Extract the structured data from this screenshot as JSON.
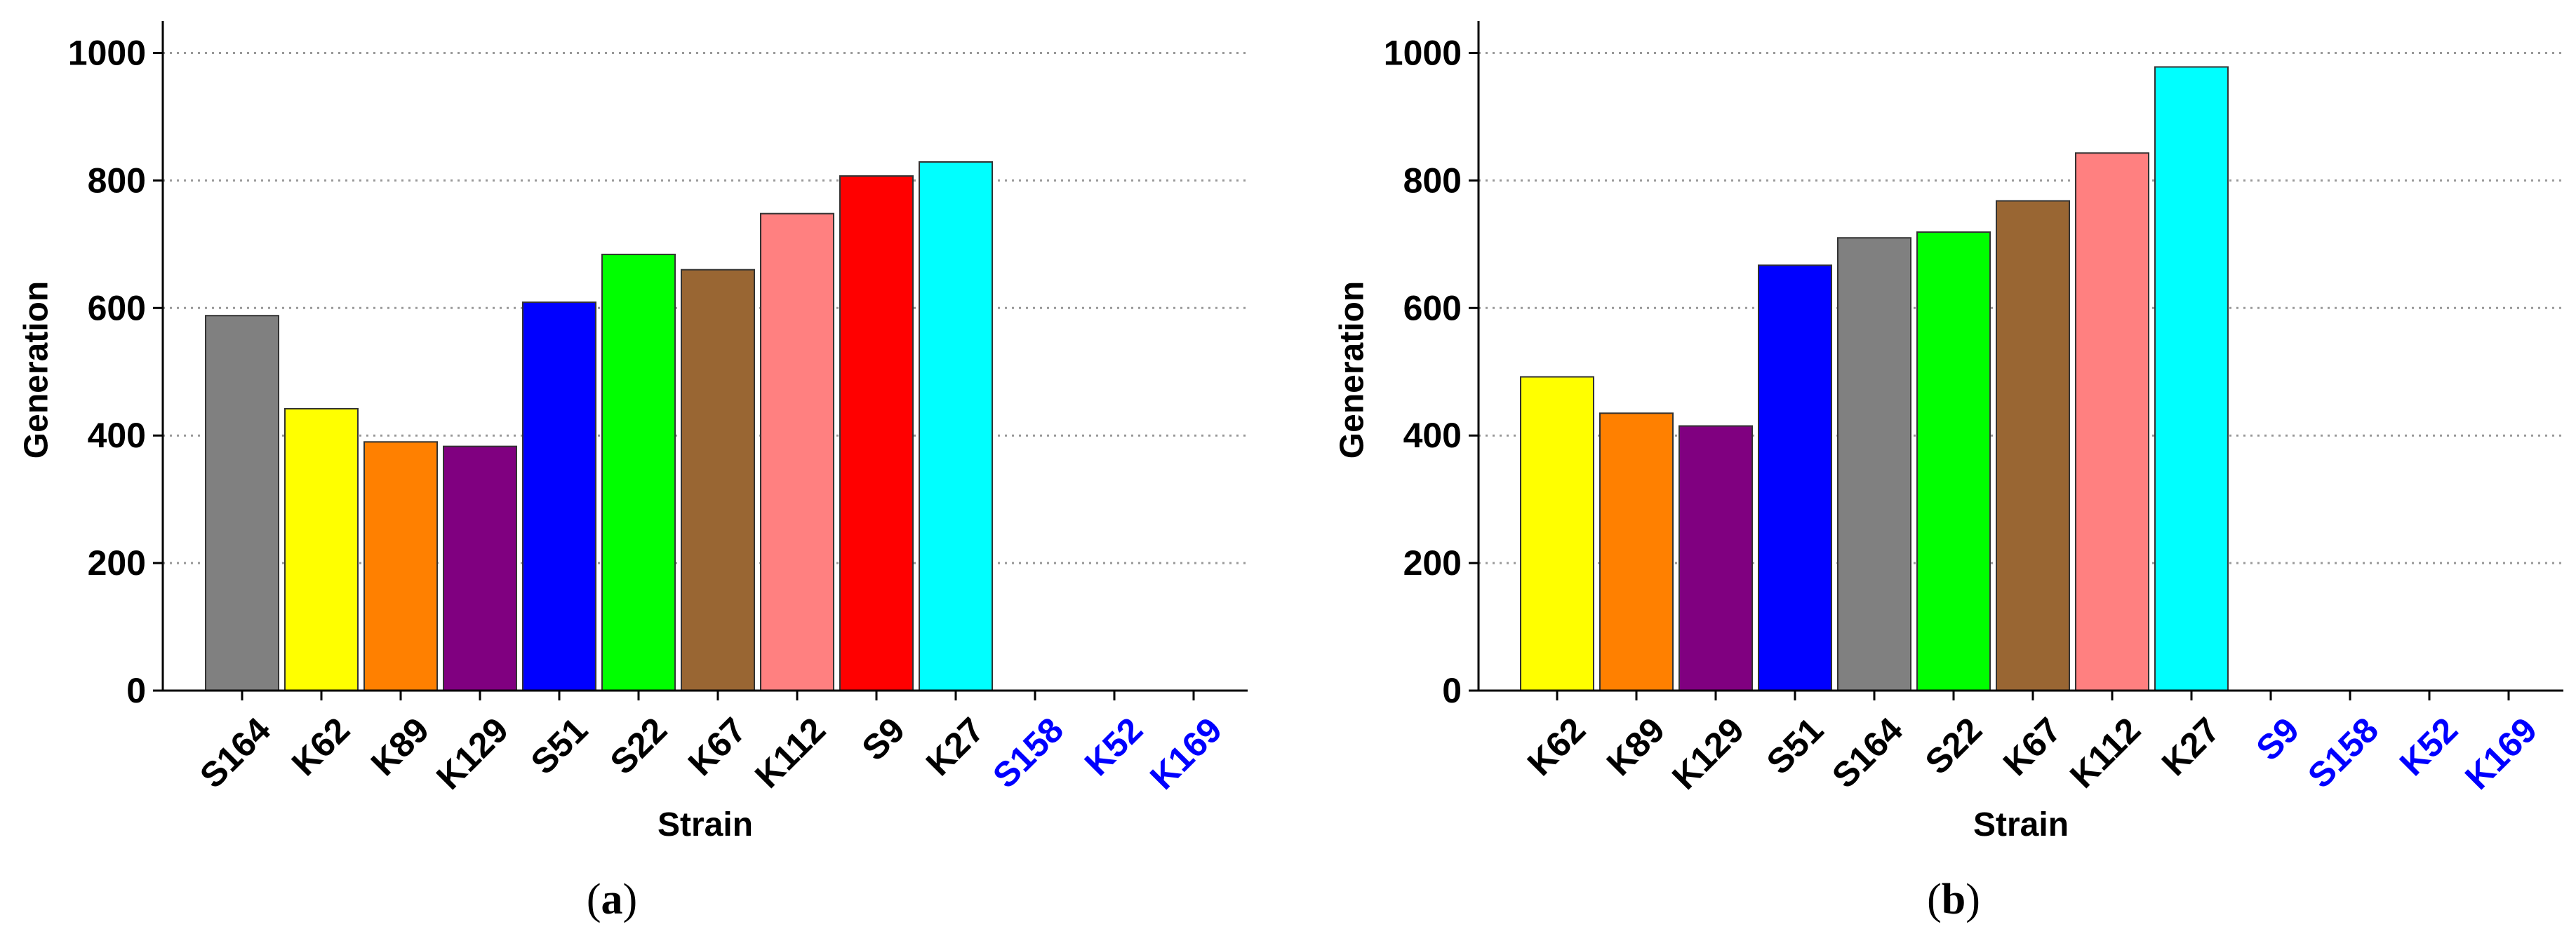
{
  "colors": {
    "gray": "#808080",
    "yellow": "#ffff00",
    "orange": "#ff8000",
    "purple": "#800080",
    "blue": "#0000ff",
    "green": "#00ff00",
    "brown": "#996633",
    "pink": "#ff8080",
    "red": "#ff0000",
    "cyan": "#00ffff",
    "axis": "#000000",
    "grid": "#999999",
    "highlight_label": "#0000ff",
    "normal_label": "#000000"
  },
  "panels": [
    {
      "caption": "a",
      "chart_data": {
        "type": "bar",
        "xlabel": "Strain",
        "ylabel": "Generation",
        "ylim": [
          0,
          1050
        ],
        "yticks": [
          0,
          200,
          400,
          600,
          800,
          1000
        ],
        "grid": "horizontal dotted",
        "categories": [
          "S164",
          "K62",
          "K89",
          "K129",
          "S51",
          "S22",
          "K67",
          "K112",
          "S9",
          "K27",
          "S158",
          "K52",
          "K169"
        ],
        "values": [
          588,
          442,
          390,
          383,
          609,
          684,
          660,
          748,
          807,
          829,
          0,
          0,
          0
        ],
        "bar_colors": [
          "gray",
          "yellow",
          "orange",
          "purple",
          "blue",
          "green",
          "brown",
          "pink",
          "red",
          "cyan",
          "",
          "",
          ""
        ],
        "highlighted_labels": [
          "S158",
          "K52",
          "K169"
        ]
      }
    },
    {
      "caption": "b",
      "chart_data": {
        "type": "bar",
        "xlabel": "Strain",
        "ylabel": "Generation",
        "ylim": [
          0,
          1050
        ],
        "yticks": [
          0,
          200,
          400,
          600,
          800,
          1000
        ],
        "grid": "horizontal dotted",
        "categories": [
          "K62",
          "K89",
          "K129",
          "S51",
          "S164",
          "S22",
          "K67",
          "K112",
          "K27",
          "S9",
          "S158",
          "K52",
          "K169"
        ],
        "values": [
          492,
          435,
          415,
          667,
          710,
          719,
          768,
          843,
          978,
          0,
          0,
          0,
          0
        ],
        "bar_colors": [
          "yellow",
          "orange",
          "purple",
          "blue",
          "gray",
          "green",
          "brown",
          "pink",
          "cyan",
          "",
          "",
          "",
          ""
        ],
        "highlighted_labels": [
          "S9",
          "S158",
          "K52",
          "K169"
        ]
      }
    }
  ]
}
